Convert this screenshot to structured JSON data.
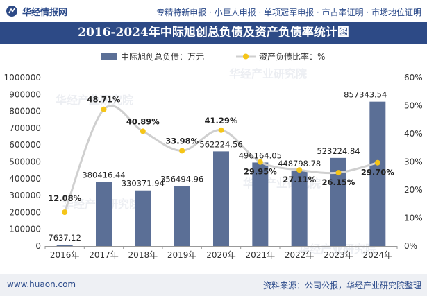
{
  "header": {
    "brand_name": "华经情报网",
    "tagline": "专精特新申报 · 小巨人申报 · 单项冠军申报 · 市占率证明 · 市场地位证明"
  },
  "footer": {
    "site": "www.huaon.com",
    "source": "资料来源：公司公报，华经产业研究院整理"
  },
  "watermark": "华经产业研究院",
  "colors": {
    "bar": "#5b6f96",
    "line": "#cfcfcf",
    "marker": "#f5c518",
    "title_bg": "#2d4a86",
    "footer_bg": "#eef0f4"
  },
  "chart_data": {
    "type": "bar",
    "title": "2016-2024年中际旭创总负债及资产负债率统计图",
    "categories": [
      "2016年",
      "2017年",
      "2018年",
      "2019年",
      "2020年",
      "2021年",
      "2022年",
      "2023年",
      "2024年"
    ],
    "series": [
      {
        "name": "中际旭创总负债：万元",
        "type": "bar",
        "axis": "left",
        "values": [
          7637.12,
          380416.44,
          330371.94,
          356494.96,
          562224.56,
          496164.05,
          448798.78,
          523224.84,
          857343.54
        ],
        "labels": [
          "7637.12",
          "380416.44",
          "330371.94",
          "356494.96",
          "562224.56",
          "496164.05",
          "448798.78",
          "523224.84",
          "857343.54"
        ]
      },
      {
        "name": "资产负债比率：%",
        "type": "line",
        "axis": "right",
        "values": [
          12.08,
          48.71,
          40.89,
          33.98,
          41.29,
          29.95,
          27.11,
          26.15,
          29.7
        ],
        "labels": [
          "12.08%",
          "48.71%",
          "40.89%",
          "33.98%",
          "41.29%",
          "29.95%",
          "27.11%",
          "26.15%",
          "29.70%"
        ]
      }
    ],
    "y_left": {
      "min": 0,
      "max": 1000000,
      "ticks": [
        "0",
        "100000",
        "200000",
        "300000",
        "400000",
        "500000",
        "600000",
        "700000",
        "800000",
        "900000",
        "1000000"
      ]
    },
    "y_right": {
      "min": 0,
      "max": 60,
      "ticks": [
        "0%",
        "10%",
        "20%",
        "30%",
        "40%",
        "50%",
        "60%"
      ]
    },
    "legend_position": "top-center",
    "grid": false
  }
}
